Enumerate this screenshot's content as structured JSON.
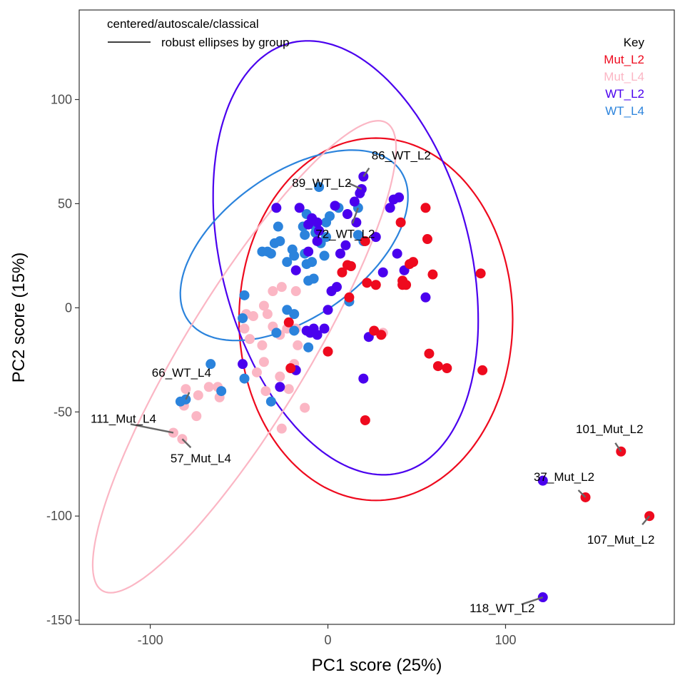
{
  "chart_data": {
    "type": "scatter",
    "xlabel": "PC1 score (25%)",
    "ylabel": "PC2 score (15%)",
    "xlim": [
      -140,
      195
    ],
    "ylim": [
      -152,
      143
    ],
    "x_ticks": [
      -100,
      0,
      100
    ],
    "y_ticks": [
      -150,
      -100,
      -50,
      0,
      50,
      100
    ],
    "grid": false,
    "annotation": {
      "title": "centered/autoscale/classical",
      "line_label": "robust ellipses by group"
    },
    "legend": {
      "title": "Key",
      "placement": "top-right",
      "entries": [
        "Mut_L2",
        "Mut_L4",
        "WT_L2",
        "WT_L4"
      ]
    },
    "colors": {
      "Mut_L2": "#EE0A1E",
      "Mut_L4": "#FBB6C4",
      "WT_L2": "#4A00EE",
      "WT_L4": "#2B83DC"
    },
    "ellipses": [
      {
        "group": "Mut_L2",
        "center": [
          27,
          -5.5
        ],
        "semi_a": 87,
        "semi_b": 77,
        "angle_deg": 90
      },
      {
        "group": "WT_L2",
        "center": [
          10,
          24
        ],
        "semi_a": 108,
        "semi_b": 69,
        "angle_deg": 110
      },
      {
        "group": "WT_L4",
        "center": [
          -19,
          30
        ],
        "semi_a": 70,
        "semi_b": 36,
        "angle_deg": 28
      },
      {
        "group": "Mut_L4",
        "center": [
          -47,
          -23.5
        ],
        "semi_a": 138,
        "semi_b": 33,
        "angle_deg": 54
      }
    ],
    "series": [
      {
        "name": "Mut_L2",
        "points": [
          [
            55,
            48
          ],
          [
            41,
            41
          ],
          [
            56,
            33
          ],
          [
            21,
            32
          ],
          [
            22,
            12
          ],
          [
            27,
            11
          ],
          [
            42,
            13
          ],
          [
            46,
            21
          ],
          [
            48,
            22
          ],
          [
            44,
            11
          ],
          [
            42,
            11
          ],
          [
            59,
            16
          ],
          [
            86,
            16.5
          ],
          [
            11,
            20.5
          ],
          [
            8,
            17
          ],
          [
            13,
            20
          ],
          [
            12,
            5
          ],
          [
            -22,
            -7
          ],
          [
            0,
            -21
          ],
          [
            -21,
            -29
          ],
          [
            26,
            -11
          ],
          [
            30,
            -13
          ],
          [
            57,
            -22
          ],
          [
            62,
            -28
          ],
          [
            67,
            -29
          ],
          [
            87,
            -30
          ],
          [
            21,
            -54
          ],
          [
            165,
            -69
          ],
          [
            145,
            -91
          ],
          [
            181,
            -100
          ]
        ]
      },
      {
        "name": "Mut_L4",
        "points": [
          [
            -26,
            10
          ],
          [
            -31,
            8
          ],
          [
            -18,
            8
          ],
          [
            -36,
            1
          ],
          [
            -46,
            -3
          ],
          [
            -34,
            -3
          ],
          [
            -42,
            -4
          ],
          [
            -31,
            -9
          ],
          [
            -23,
            -10
          ],
          [
            -47,
            -10
          ],
          [
            -18,
            -10
          ],
          [
            -27,
            -13
          ],
          [
            -44,
            -15
          ],
          [
            -37,
            -18
          ],
          [
            -17,
            -18
          ],
          [
            -36,
            -26
          ],
          [
            -19,
            -27
          ],
          [
            -40,
            -31
          ],
          [
            -27,
            -33
          ],
          [
            -67,
            -38
          ],
          [
            -62,
            -38
          ],
          [
            -80,
            -39
          ],
          [
            -73,
            -42
          ],
          [
            -61,
            -43
          ],
          [
            -35,
            -40
          ],
          [
            -22,
            -39
          ],
          [
            -81,
            -47
          ],
          [
            -13,
            -48
          ],
          [
            -74,
            -52
          ],
          [
            -87,
            -60
          ],
          [
            -82,
            -63
          ],
          [
            -26,
            -58
          ],
          [
            31,
            -12
          ]
        ]
      },
      {
        "name": "WT_L2",
        "points": [
          [
            20,
            63
          ],
          [
            19,
            57
          ],
          [
            18,
            55
          ],
          [
            37,
            52
          ],
          [
            40,
            53
          ],
          [
            15,
            51
          ],
          [
            4,
            49
          ],
          [
            35,
            48
          ],
          [
            -29,
            48
          ],
          [
            -16,
            48
          ],
          [
            -9,
            43
          ],
          [
            -6,
            41
          ],
          [
            11,
            45
          ],
          [
            16,
            41
          ],
          [
            -11,
            40
          ],
          [
            -5,
            37
          ],
          [
            -6,
            32
          ],
          [
            27,
            34
          ],
          [
            -11,
            27
          ],
          [
            7,
            26
          ],
          [
            10,
            30
          ],
          [
            39,
            26
          ],
          [
            -18,
            18
          ],
          [
            31,
            17
          ],
          [
            43,
            18
          ],
          [
            55,
            5
          ],
          [
            2,
            8
          ],
          [
            5,
            10
          ],
          [
            0,
            -1
          ],
          [
            -2,
            -10
          ],
          [
            -10,
            -12
          ],
          [
            -8,
            -10
          ],
          [
            -12,
            -11
          ],
          [
            -6,
            -13
          ],
          [
            23,
            -14
          ],
          [
            -18,
            -30
          ],
          [
            -48,
            -27
          ],
          [
            -27,
            -38
          ],
          [
            20,
            -34
          ],
          [
            121,
            -83
          ],
          [
            121,
            -139
          ]
        ]
      },
      {
        "name": "WT_L4",
        "points": [
          [
            -5,
            58
          ],
          [
            6,
            48
          ],
          [
            17,
            48
          ],
          [
            -12,
            45
          ],
          [
            1,
            44
          ],
          [
            -1,
            41
          ],
          [
            -28,
            39
          ],
          [
            -14,
            39
          ],
          [
            -7,
            39
          ],
          [
            -5,
            37
          ],
          [
            -7,
            36
          ],
          [
            -13,
            35
          ],
          [
            -1,
            34
          ],
          [
            17,
            35
          ],
          [
            20,
            32
          ],
          [
            -27,
            32
          ],
          [
            -34,
            27
          ],
          [
            -20,
            28
          ],
          [
            -13,
            26
          ],
          [
            -19,
            25
          ],
          [
            -4,
            31
          ],
          [
            -2,
            25
          ],
          [
            -9,
            22
          ],
          [
            -12,
            21
          ],
          [
            -23,
            22
          ],
          [
            -8,
            14
          ],
          [
            -32,
            26
          ],
          [
            -37,
            27
          ],
          [
            -30,
            31
          ],
          [
            -47,
            6
          ],
          [
            -11,
            13
          ],
          [
            -23,
            -1
          ],
          [
            -19,
            -3
          ],
          [
            12,
            3
          ],
          [
            -48,
            -5
          ],
          [
            -19,
            -11
          ],
          [
            -29,
            -12
          ],
          [
            -11,
            -19
          ],
          [
            -47,
            -34
          ],
          [
            -66,
            -27
          ],
          [
            -80,
            -44
          ],
          [
            -60,
            -40
          ],
          [
            -83,
            -45
          ],
          [
            -32,
            -45
          ]
        ]
      }
    ],
    "point_labels": [
      {
        "text": "86_WT_L2",
        "point": [
          20,
          63
        ]
      },
      {
        "text": "89_WT_L2",
        "point": [
          19,
          57
        ]
      },
      {
        "text": "72_WT_L2",
        "point": [
          17,
          48
        ]
      },
      {
        "text": "66_WT_L4",
        "point": [
          -80,
          -44
        ]
      },
      {
        "text": "111_Mut_L4",
        "point": [
          -87,
          -60
        ]
      },
      {
        "text": "57_Mut_L4",
        "point": [
          -82,
          -63
        ]
      },
      {
        "text": "101_Mut_L2",
        "point": [
          165,
          -69
        ]
      },
      {
        "text": "37_Mut_L2",
        "point": [
          145,
          -91
        ]
      },
      {
        "text": "107_Mut_L2",
        "point": [
          181,
          -100
        ]
      },
      {
        "text": "118_WT_L2",
        "point": [
          121,
          -139
        ]
      }
    ]
  }
}
